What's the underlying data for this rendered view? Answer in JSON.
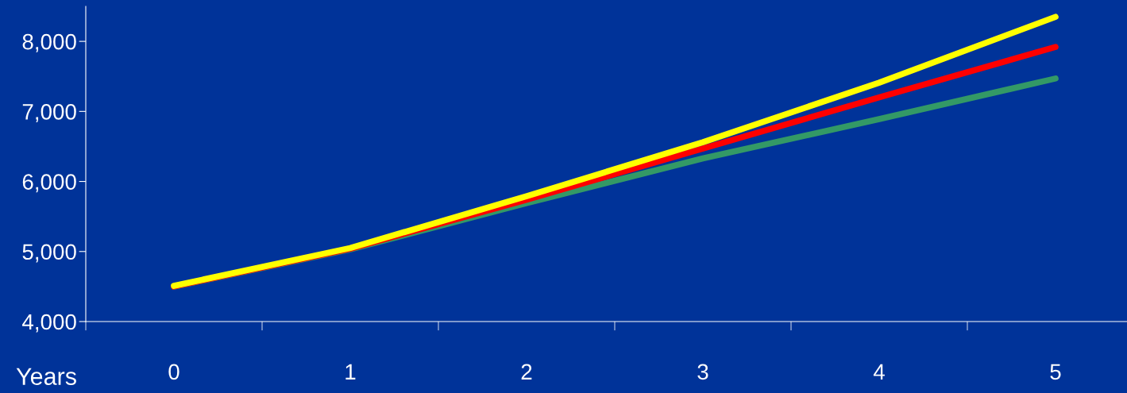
{
  "chart_data": {
    "type": "line",
    "xlabel": "Years",
    "categories": [
      "0",
      "1",
      "2",
      "3",
      "4",
      "5"
    ],
    "series": [
      {
        "color": "#339966",
        "values": [
          4500,
          5030,
          5690,
          6330,
          6890,
          7470
        ]
      },
      {
        "color": "#ff0000",
        "values": [
          4500,
          5040,
          5740,
          6470,
          7200,
          7920
        ]
      },
      {
        "color": "#ffff00",
        "values": [
          4510,
          5050,
          5790,
          6560,
          7410,
          8350
        ]
      }
    ],
    "ylim": [
      4000,
      8500
    ],
    "yticks": [
      {
        "value": 4000,
        "label": "4,000"
      },
      {
        "value": 5000,
        "label": "5,000"
      },
      {
        "value": 6000,
        "label": "6,000"
      },
      {
        "value": 7000,
        "label": "7,000"
      },
      {
        "value": 8000,
        "label": "8,000"
      }
    ],
    "grid": false,
    "legend": false,
    "marker": "none",
    "line_style": "solid"
  }
}
